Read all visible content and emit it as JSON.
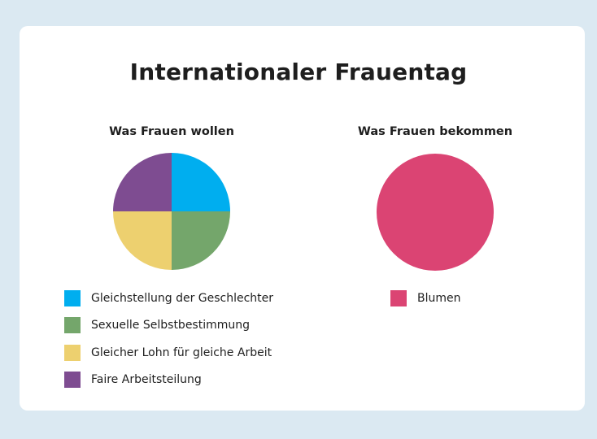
{
  "title": "Internationaler Frauentag",
  "chart_data": [
    {
      "type": "pie",
      "title": "Was Frauen wollen",
      "categories": [
        "Gleichstellung der Geschlechter",
        "Sexuelle Selbstbestimmung",
        "Gleicher Lohn für gleiche Arbeit",
        "Faire Arbeitsteilung"
      ],
      "values": [
        25,
        25,
        25,
        25
      ],
      "colors": [
        "#00aeef",
        "#74a66b",
        "#edd06f",
        "#7e4c91"
      ],
      "legend": "bottom"
    },
    {
      "type": "pie",
      "title": "Was Frauen bekommen",
      "categories": [
        "Blumen"
      ],
      "values": [
        100
      ],
      "colors": [
        "#db4473"
      ],
      "legend": "bottom"
    }
  ]
}
